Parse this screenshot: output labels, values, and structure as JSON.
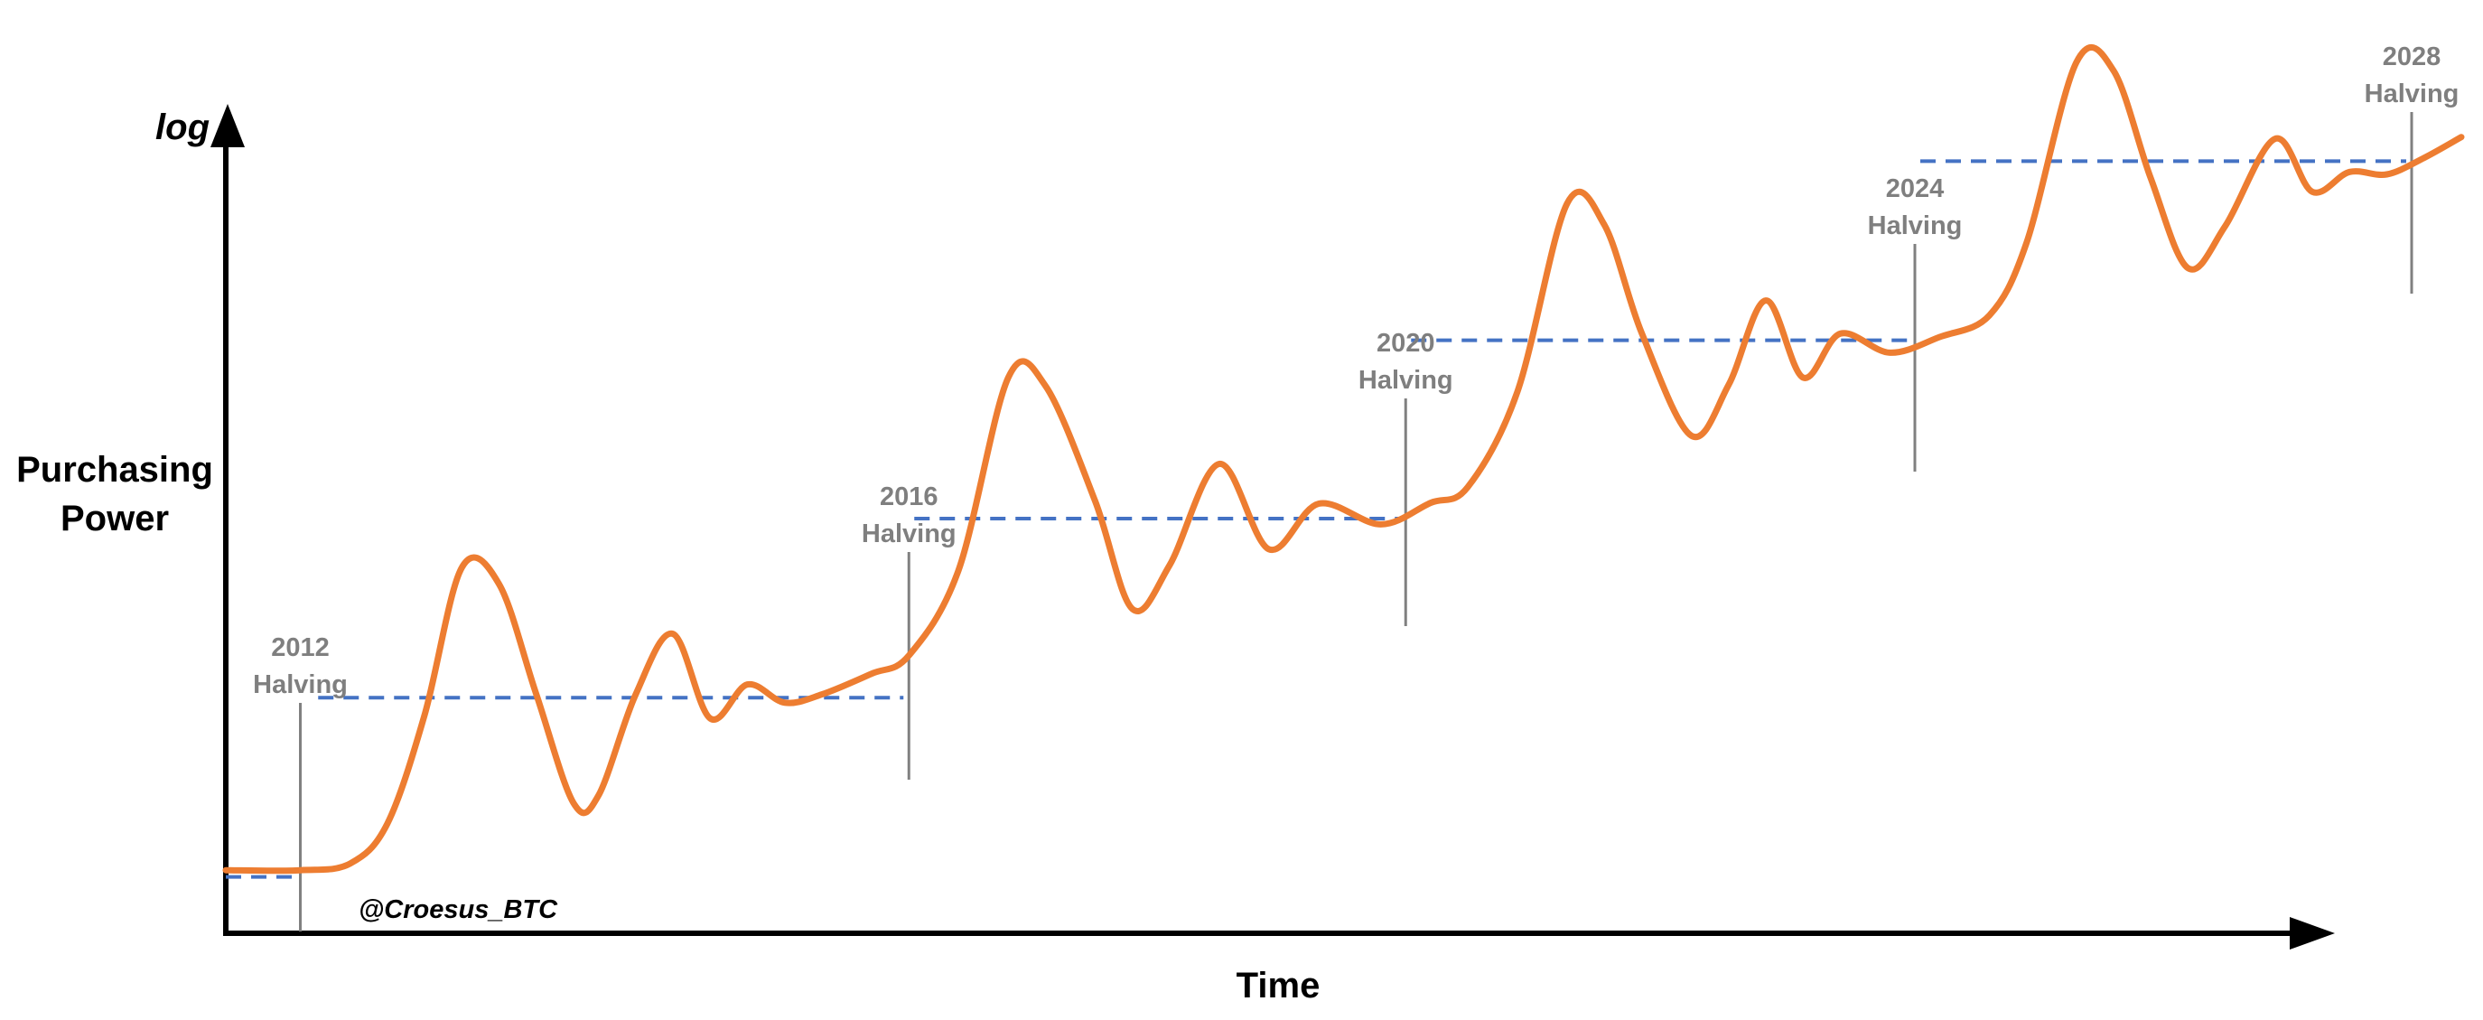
{
  "chart_data": {
    "type": "line",
    "title": "",
    "xlabel": "Time",
    "ylabel": "Purchasing Power",
    "yscale_label": "log",
    "y_scale": "log",
    "grid": false,
    "legend": "none",
    "watermark": "@Croesus_BTC",
    "colors": {
      "series": "#ed7d31",
      "level": "#4472c4",
      "halving_marker": "#808080",
      "axis": "#000000",
      "label": "#7f7f7f"
    },
    "events": [
      {
        "year": "2012",
        "label": "Halving"
      },
      {
        "year": "2016",
        "label": "Halving"
      },
      {
        "year": "2020",
        "label": "Halving"
      },
      {
        "year": "2024",
        "label": "Halving"
      },
      {
        "year": "2028",
        "label": "Halving"
      }
    ],
    "series": [
      {
        "values": [
          [
            0.0,
            0.076
          ],
          [
            0.6,
            0.076
          ],
          [
            1.0,
            0.084
          ],
          [
            1.3,
            0.132
          ],
          [
            1.6,
            0.263
          ],
          [
            1.9,
            0.441
          ],
          [
            2.2,
            0.421
          ],
          [
            2.5,
            0.288
          ],
          [
            2.8,
            0.157
          ],
          [
            3.0,
            0.166
          ],
          [
            3.3,
            0.288
          ],
          [
            3.6,
            0.361
          ],
          [
            3.9,
            0.259
          ],
          [
            4.2,
            0.3
          ],
          [
            4.5,
            0.278
          ],
          [
            4.8,
            0.288
          ],
          [
            5.2,
            0.313
          ],
          [
            5.5,
            0.335
          ],
          [
            5.9,
            0.438
          ],
          [
            6.3,
            0.67
          ],
          [
            6.6,
            0.66
          ],
          [
            7.0,
            0.521
          ],
          [
            7.3,
            0.391
          ],
          [
            7.6,
            0.444
          ],
          [
            8.0,
            0.566
          ],
          [
            8.4,
            0.463
          ],
          [
            8.8,
            0.518
          ],
          [
            9.3,
            0.493
          ],
          [
            9.7,
            0.519
          ],
          [
            10.0,
            0.538
          ],
          [
            10.4,
            0.653
          ],
          [
            10.8,
            0.88
          ],
          [
            11.1,
            0.854
          ],
          [
            11.4,
            0.724
          ],
          [
            11.8,
            0.6
          ],
          [
            12.1,
            0.661
          ],
          [
            12.4,
            0.763
          ],
          [
            12.7,
            0.67
          ],
          [
            13.0,
            0.723
          ],
          [
            13.4,
            0.7
          ],
          [
            13.8,
            0.719
          ],
          [
            14.2,
            0.745
          ],
          [
            14.5,
            0.833
          ],
          [
            14.9,
            1.05
          ],
          [
            15.2,
            1.04
          ],
          [
            15.5,
            0.91
          ],
          [
            15.8,
            0.802
          ],
          [
            16.1,
            0.853
          ],
          [
            16.5,
            0.958
          ],
          [
            16.8,
            0.894
          ],
          [
            17.1,
            0.918
          ],
          [
            17.4,
            0.915
          ],
          [
            17.7,
            0.935
          ],
          [
            18.0,
            0.96
          ]
        ]
      }
    ],
    "levels": [
      {
        "event": "2012",
        "x_start": 0.0,
        "x_end": 0.6,
        "y": 0.068
      },
      {
        "event": "2012",
        "x_start": 0.7,
        "x_end": 5.5,
        "y": 0.284
      },
      {
        "event": "2016",
        "x_start": 5.5,
        "x_end": 9.5,
        "y": 0.5
      },
      {
        "event": "2020",
        "x_start": 9.5,
        "x_end": 13.6,
        "y": 0.715
      },
      {
        "event": "2024",
        "x_start": 13.6,
        "x_end": 17.6,
        "y": 0.931
      }
    ],
    "halving_x": [
      0.6,
      5.5,
      9.5,
      13.6,
      17.6
    ]
  }
}
